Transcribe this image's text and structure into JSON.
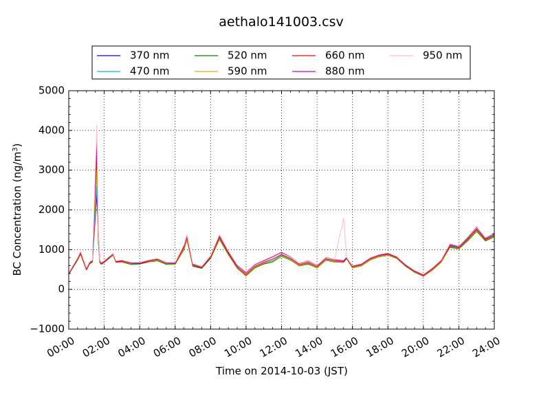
{
  "chart_data": {
    "type": "line",
    "title": "aethalo141003.csv",
    "xlabel": "Time on 2014-10-03 (JST)",
    "ylabel_main": "BC Concentration (ng/m",
    "ylabel_sup": "3",
    "ylabel_close": ")",
    "xlim": [
      "00:00",
      "24:00"
    ],
    "ylim": [
      -1000,
      5000
    ],
    "x_ticks": [
      "00:00",
      "02:00",
      "04:00",
      "06:00",
      "08:00",
      "10:00",
      "12:00",
      "14:00",
      "16:00",
      "18:00",
      "20:00",
      "22:00",
      "24:00"
    ],
    "y_ticks": [
      "−1000",
      "0",
      "1000",
      "2000",
      "3000",
      "4000",
      "5000"
    ],
    "grid": true,
    "legend_position": "top",
    "x": [
      "00:00",
      "00:30",
      "00:40",
      "01:00",
      "01:10",
      "01:20",
      "01:35",
      "01:40",
      "01:45",
      "01:50",
      "02:00",
      "02:30",
      "02:40",
      "03:00",
      "03:30",
      "04:00",
      "04:30",
      "05:00",
      "05:30",
      "06:00",
      "06:30",
      "06:40",
      "07:00",
      "07:30",
      "08:00",
      "08:30",
      "09:00",
      "09:30",
      "10:00",
      "10:30",
      "11:00",
      "11:30",
      "12:00",
      "12:30",
      "13:00",
      "13:30",
      "14:00",
      "14:30",
      "15:00",
      "15:30",
      "15:40",
      "16:00",
      "16:30",
      "17:00",
      "17:30",
      "18:00",
      "18:30",
      "19:00",
      "19:30",
      "20:00",
      "20:30",
      "21:00",
      "21:30",
      "22:00",
      "22:30",
      "23:00",
      "23:30",
      "24:00"
    ],
    "series": [
      {
        "name": "370 nm",
        "color": "#0000ff",
        "values": [
          400,
          750,
          900,
          500,
          650,
          700,
          2400,
          1400,
          700,
          650,
          700,
          900,
          700,
          700,
          650,
          650,
          700,
          750,
          650,
          650,
          1050,
          1300,
          600,
          550,
          800,
          1300,
          900,
          550,
          350,
          550,
          650,
          700,
          850,
          750,
          600,
          650,
          550,
          750,
          700,
          700,
          800,
          550,
          600,
          750,
          850,
          900,
          800,
          600,
          450,
          350,
          500,
          700,
          1100,
          1050,
          1250,
          1500,
          1250,
          1350
        ]
      },
      {
        "name": "470 nm",
        "color": "#00bfbf",
        "values": [
          420,
          780,
          930,
          520,
          670,
          720,
          2600,
          1500,
          720,
          660,
          690,
          880,
          700,
          720,
          640,
          660,
          720,
          730,
          640,
          660,
          1080,
          1330,
          620,
          560,
          820,
          1330,
          920,
          570,
          370,
          560,
          660,
          720,
          860,
          760,
          610,
          670,
          560,
          760,
          710,
          690,
          790,
          560,
          610,
          760,
          840,
          880,
          790,
          590,
          440,
          360,
          520,
          720,
          1120,
          1060,
          1270,
          1520,
          1260,
          1370
        ]
      },
      {
        "name": "520 nm",
        "color": "#008000",
        "values": [
          380,
          740,
          880,
          490,
          640,
          690,
          3300,
          1200,
          680,
          630,
          680,
          860,
          680,
          690,
          630,
          640,
          690,
          720,
          630,
          630,
          1000,
          1250,
          580,
          530,
          780,
          1260,
          880,
          530,
          340,
          540,
          640,
          690,
          830,
          740,
          590,
          640,
          540,
          730,
          690,
          680,
          770,
          540,
          590,
          740,
          820,
          860,
          780,
          580,
          430,
          330,
          480,
          680,
          1060,
          1020,
          1220,
          1460,
          1220,
          1320
        ]
      },
      {
        "name": "590 nm",
        "color": "#bfbf00",
        "values": [
          400,
          760,
          890,
          510,
          660,
          700,
          3000,
          1300,
          700,
          650,
          700,
          870,
          690,
          700,
          650,
          660,
          700,
          740,
          650,
          640,
          1020,
          1270,
          600,
          550,
          800,
          1280,
          900,
          540,
          360,
          560,
          660,
          700,
          840,
          750,
          600,
          660,
          550,
          740,
          700,
          690,
          780,
          550,
          600,
          750,
          830,
          870,
          790,
          590,
          440,
          340,
          490,
          690,
          1080,
          1040,
          1240,
          1480,
          1240,
          1340
        ]
      },
      {
        "name": "660 nm",
        "color": "#ff0000",
        "values": [
          390,
          770,
          910,
          500,
          650,
          710,
          3500,
          1350,
          710,
          640,
          690,
          890,
          690,
          710,
          660,
          650,
          710,
          760,
          660,
          650,
          1060,
          1310,
          610,
          540,
          810,
          1310,
          910,
          560,
          380,
          580,
          680,
          760,
          880,
          780,
          620,
          680,
          570,
          770,
          720,
          700,
          790,
          570,
          620,
          770,
          850,
          890,
          800,
          600,
          450,
          350,
          510,
          710,
          1090,
          1050,
          1260,
          1510,
          1250,
          1360
        ]
      },
      {
        "name": "880 nm",
        "color": "#bf00bf",
        "values": [
          410,
          790,
          950,
          530,
          680,
          730,
          3700,
          1400,
          730,
          670,
          710,
          900,
          710,
          730,
          670,
          670,
          730,
          770,
          670,
          670,
          1100,
          1360,
          640,
          570,
          840,
          1360,
          950,
          600,
          420,
          620,
          720,
          820,
          930,
          820,
          650,
          720,
          600,
          800,
          750,
          720,
          800,
          590,
          640,
          790,
          870,
          910,
          820,
          620,
          470,
          370,
          530,
          730,
          1130,
          1080,
          1300,
          1560,
          1280,
          1400
        ]
      },
      {
        "name": "950 nm",
        "color": "#ffc0cb",
        "values": [
          420,
          800,
          960,
          540,
          690,
          740,
          4150,
          1450,
          740,
          680,
          720,
          910,
          720,
          740,
          680,
          680,
          740,
          780,
          680,
          680,
          1120,
          1380,
          650,
          580,
          850,
          1380,
          970,
          620,
          440,
          640,
          740,
          840,
          950,
          830,
          660,
          730,
          610,
          810,
          760,
          1800,
          810,
          600,
          650,
          800,
          880,
          920,
          830,
          630,
          480,
          380,
          540,
          740,
          1150,
          1090,
          1320,
          1580,
          1300,
          1420
        ]
      }
    ]
  }
}
